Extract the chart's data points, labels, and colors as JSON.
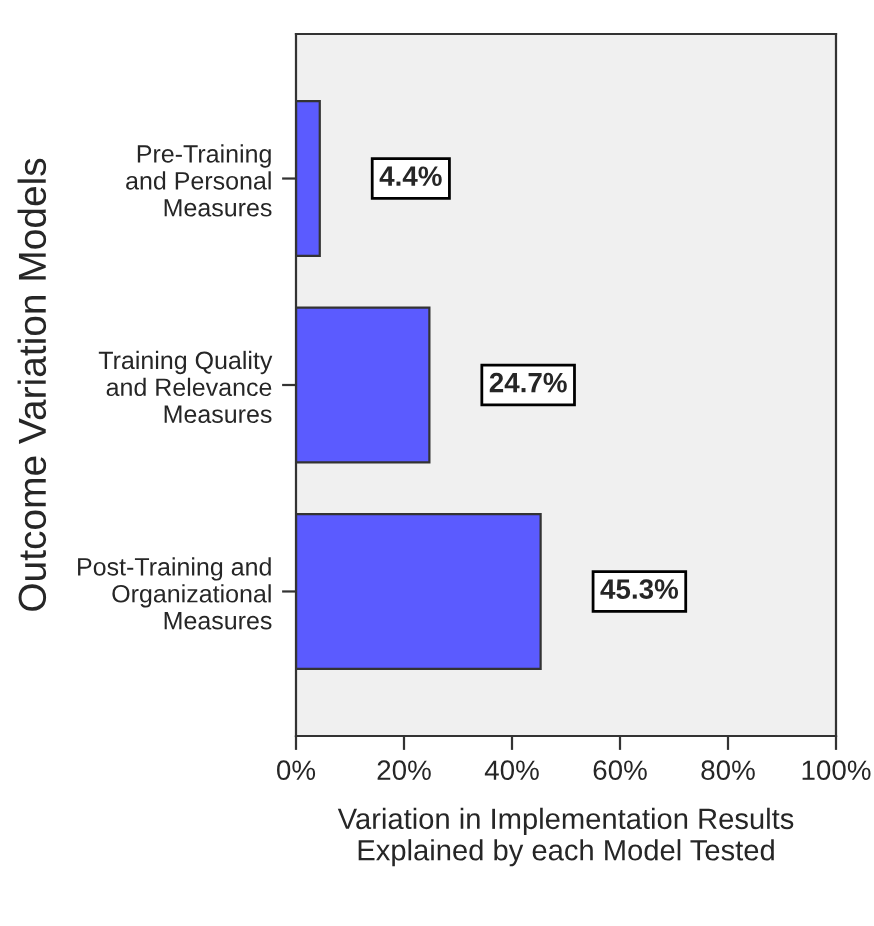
{
  "chart_data": {
    "type": "bar",
    "orientation": "horizontal",
    "categories": [
      "Pre-Training\nand Personal\nMeasures",
      "Training Quality\nand Relevance\nMeasures",
      "Post-Training and\nOrganizational\nMeasures"
    ],
    "values": [
      4.4,
      24.7,
      45.3
    ],
    "color": "#5b5bff",
    "value_labels": [
      "4.4%",
      "24.7%",
      "45.3%"
    ],
    "xlim": [
      0,
      100
    ],
    "xticks": [
      {
        "value": 0,
        "label": "0%"
      },
      {
        "value": 20,
        "label": "20%"
      },
      {
        "value": 40,
        "label": "40%"
      },
      {
        "value": 60,
        "label": "60%"
      },
      {
        "value": 80,
        "label": "80%"
      },
      {
        "value": 100,
        "label": "100%"
      }
    ],
    "xlabel": "Variation in Implementation Results\nExplained by each Model Tested",
    "ylabel": "Outcome Variation Models",
    "grid": false,
    "legend": false
  }
}
